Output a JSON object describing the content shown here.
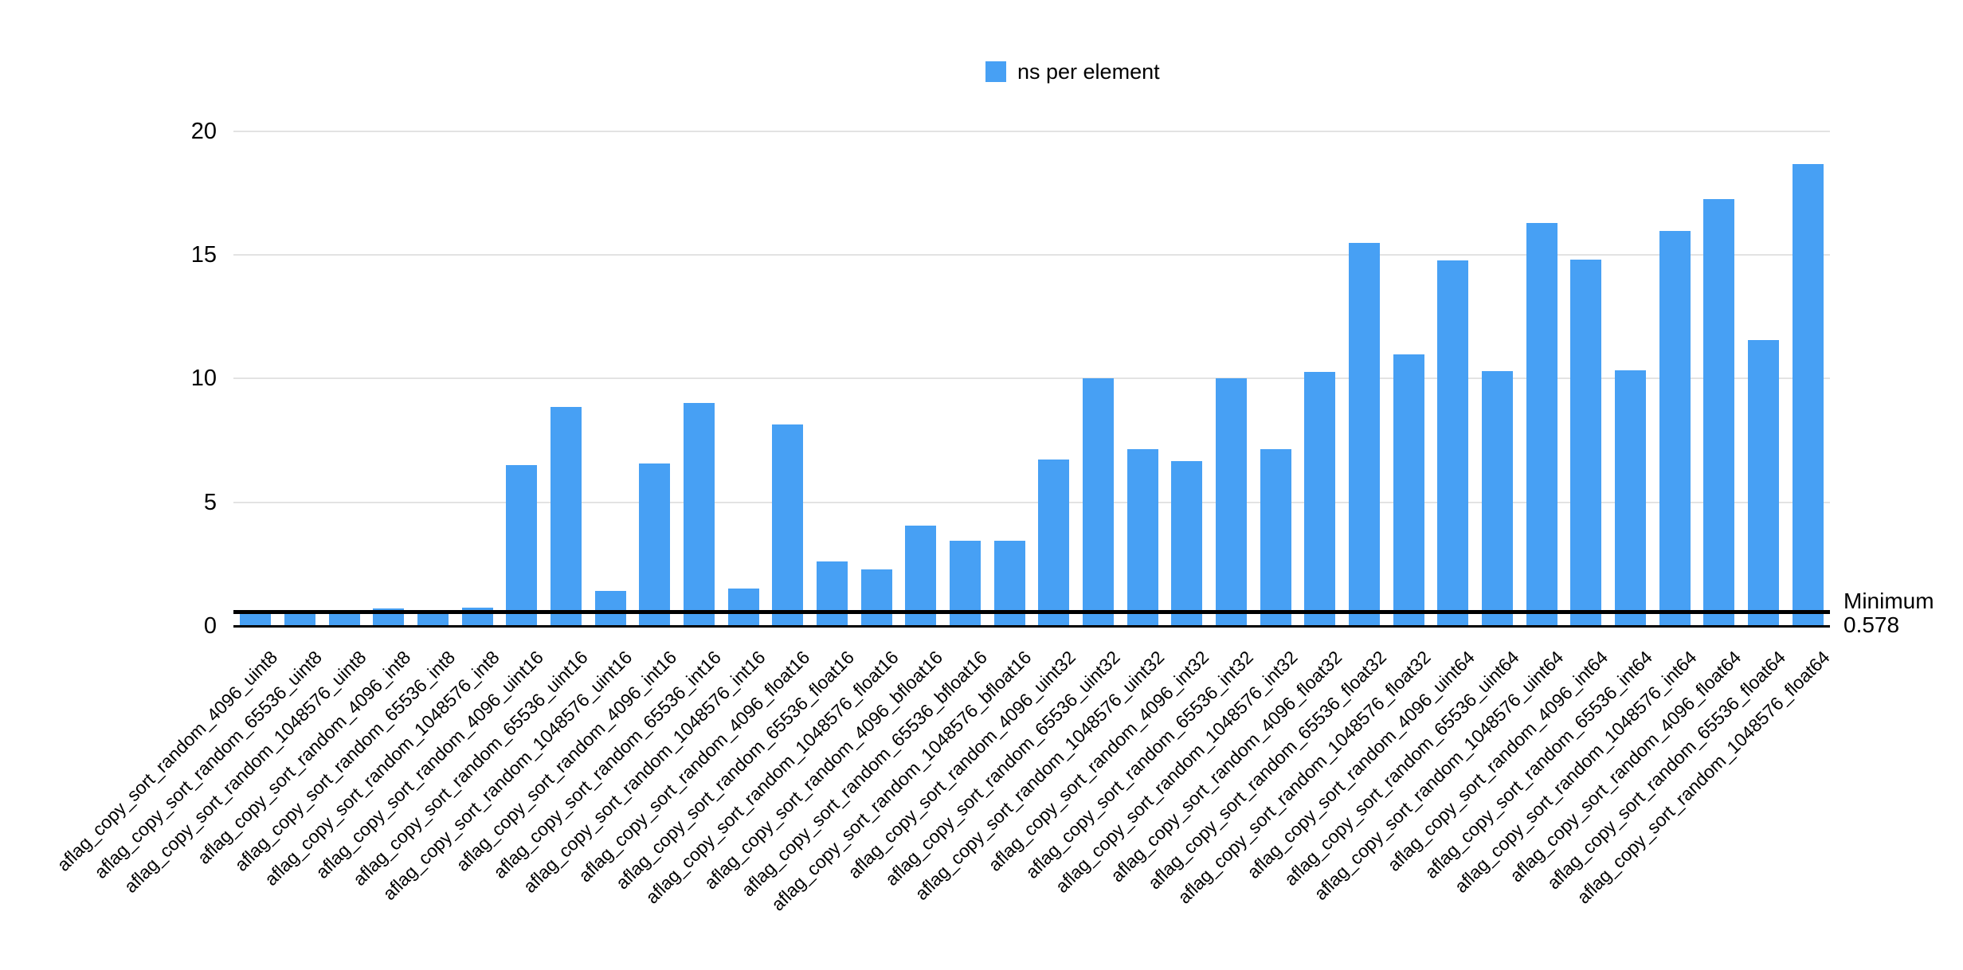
{
  "legend": {
    "label": "ns per element"
  },
  "annotation": {
    "label": "Minimum",
    "value": "0.578"
  },
  "colors": {
    "bar": "#47A0F4",
    "gridline": "#E3E3E3",
    "axis_line": "#000000",
    "minimum_line": "#000000",
    "text": "#000000"
  },
  "chart_data": {
    "type": "bar",
    "title": "",
    "xlabel": "",
    "ylabel": "",
    "legend_position": "top-center",
    "grid": true,
    "ylim": [
      0,
      20
    ],
    "y_ticks": [
      0,
      5,
      10,
      15,
      20
    ],
    "series_name": "ns per element",
    "categories": [
      "aflag_copy_sort_random_4096_uint8",
      "aflag_copy_sort_random_65536_uint8",
      "aflag_copy_sort_random_1048576_uint8",
      "aflag_copy_sort_random_4096_int8",
      "aflag_copy_sort_random_65536_int8",
      "aflag_copy_sort_random_1048576_int8",
      "aflag_copy_sort_random_4096_uint16",
      "aflag_copy_sort_random_65536_uint16",
      "aflag_copy_sort_random_1048576_uint16",
      "aflag_copy_sort_random_4096_int16",
      "aflag_copy_sort_random_65536_int16",
      "aflag_copy_sort_random_1048576_int16",
      "aflag_copy_sort_random_4096_float16",
      "aflag_copy_sort_random_65536_float16",
      "aflag_copy_sort_random_1048576_float16",
      "aflag_copy_sort_random_4096_bfloat16",
      "aflag_copy_sort_random_65536_bfloat16",
      "aflag_copy_sort_random_1048576_bfloat16",
      "aflag_copy_sort_random_4096_uint32",
      "aflag_copy_sort_random_65536_uint32",
      "aflag_copy_sort_random_1048576_uint32",
      "aflag_copy_sort_random_4096_int32",
      "aflag_copy_sort_random_65536_int32",
      "aflag_copy_sort_random_1048576_int32",
      "aflag_copy_sort_random_4096_float32",
      "aflag_copy_sort_random_65536_float32",
      "aflag_copy_sort_random_1048576_float32",
      "aflag_copy_sort_random_4096_uint64",
      "aflag_copy_sort_random_65536_uint64",
      "aflag_copy_sort_random_1048576_uint64",
      "aflag_copy_sort_random_4096_int64",
      "aflag_copy_sort_random_65536_int64",
      "aflag_copy_sort_random_1048576_int64",
      "aflag_copy_sort_random_4096_float64",
      "aflag_copy_sort_random_65536_float64",
      "aflag_copy_sort_random_1048576_float64"
    ],
    "values": [
      0.578,
      0.58,
      0.59,
      0.72,
      0.59,
      0.73,
      6.5,
      8.85,
      1.41,
      6.57,
      9.0,
      1.52,
      8.13,
      2.62,
      2.27,
      4.05,
      3.45,
      3.44,
      6.72,
      10.0,
      7.15,
      6.67,
      10.0,
      7.15,
      10.28,
      15.48,
      10.98,
      14.78,
      10.3,
      16.28,
      14.8,
      10.34,
      15.96,
      17.25,
      11.55,
      18.67
    ],
    "annotations": [
      {
        "type": "horizontal-line",
        "label": "Minimum",
        "value": 0.578
      }
    ]
  }
}
